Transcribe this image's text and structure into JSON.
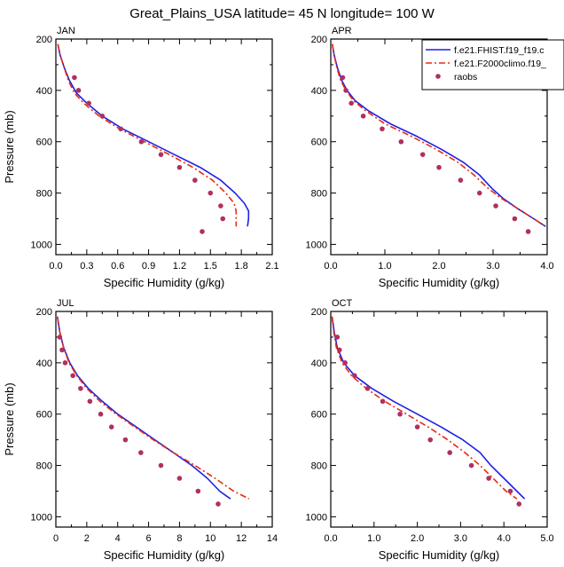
{
  "figure": {
    "title": "Great_Plains_USA  latitude= 45 N longitude= 100 W"
  },
  "legend": {
    "placement": "top-right of APR panel",
    "entries": [
      {
        "label": "f.e21.FHIST.f19_f19.c",
        "color": "#1f1fe6",
        "style": "solid"
      },
      {
        "label": "f.e21.F2000climo.f19_",
        "color": "#e62b12",
        "style": "dashed"
      },
      {
        "label": "raobs",
        "color": "#b0305f",
        "style": "marker"
      }
    ]
  },
  "colors": {
    "model1": "#1f1fe6",
    "model2": "#e62b12",
    "raobs": "#b0305f"
  },
  "chart_data": [
    {
      "type": "line",
      "title": "JAN",
      "xlabel": "Specific Humidity (g/kg)",
      "ylabel": "Pressure (mb)",
      "xlim": [
        0,
        2.1
      ],
      "ylim": [
        200,
        1040
      ],
      "y_reversed": true,
      "xticks": [
        0.0,
        0.3,
        0.6,
        0.9,
        1.2,
        1.5,
        1.8,
        2.1
      ],
      "xtick_labels": [
        "0.0",
        "0.3",
        "0.6",
        "0.9",
        "1.2",
        "1.5",
        "1.8",
        "2.1"
      ],
      "yticks": [
        200,
        400,
        600,
        800,
        1000
      ],
      "ytick_labels": [
        "200",
        "400",
        "600",
        "800",
        "1000"
      ],
      "series": [
        {
          "name": "f.e21.FHIST.f19_f19.c",
          "style": "solid",
          "x": [
            0.02,
            0.04,
            0.08,
            0.13,
            0.2,
            0.3,
            0.45,
            0.65,
            0.9,
            1.15,
            1.4,
            1.6,
            1.74,
            1.83,
            1.87,
            1.87,
            1.86
          ],
          "y": [
            220,
            260,
            310,
            360,
            410,
            450,
            500,
            550,
            600,
            650,
            700,
            750,
            800,
            840,
            870,
            900,
            930
          ]
        },
        {
          "name": "f.e21.F2000climo.f19_",
          "style": "dashed",
          "x": [
            0.02,
            0.04,
            0.08,
            0.12,
            0.18,
            0.27,
            0.42,
            0.62,
            0.86,
            1.1,
            1.33,
            1.52,
            1.65,
            1.73,
            1.75,
            1.75,
            1.75
          ],
          "y": [
            220,
            260,
            310,
            360,
            410,
            450,
            500,
            550,
            600,
            650,
            700,
            750,
            800,
            840,
            870,
            900,
            930
          ]
        },
        {
          "name": "raobs",
          "style": "markers",
          "x": [
            0.18,
            0.22,
            0.32,
            0.45,
            0.63,
            0.83,
            1.02,
            1.2,
            1.35,
            1.5,
            1.6,
            1.62,
            1.42
          ],
          "y": [
            350,
            400,
            450,
            500,
            550,
            600,
            650,
            700,
            750,
            800,
            850,
            900,
            950
          ]
        }
      ]
    },
    {
      "type": "line",
      "title": "APR",
      "xlabel": "Specific Humidity (g/kg)",
      "ylabel": "",
      "xlim": [
        0,
        4.0
      ],
      "ylim": [
        200,
        1040
      ],
      "y_reversed": true,
      "xticks": [
        0.0,
        1.0,
        2.0,
        3.0,
        4.0
      ],
      "xtick_labels": [
        "0.0",
        "1.0",
        "2.0",
        "3.0",
        "4.0"
      ],
      "yticks": [
        200,
        400,
        600,
        800,
        1000
      ],
      "ytick_labels": [
        "200",
        "400",
        "600",
        "800",
        "1000"
      ],
      "series": [
        {
          "name": "f.e21.FHIST.f19_f19.c",
          "style": "solid",
          "x": [
            0.03,
            0.06,
            0.12,
            0.2,
            0.3,
            0.45,
            0.7,
            1.1,
            1.6,
            2.05,
            2.45,
            2.75,
            2.97,
            3.18,
            3.45,
            3.75,
            3.97
          ],
          "y": [
            220,
            260,
            310,
            360,
            400,
            440,
            480,
            530,
            580,
            630,
            680,
            730,
            780,
            820,
            860,
            900,
            930
          ]
        },
        {
          "name": "f.e21.F2000climo.f19_",
          "style": "dashed",
          "x": [
            0.03,
            0.06,
            0.11,
            0.18,
            0.28,
            0.42,
            0.65,
            1.0,
            1.5,
            1.95,
            2.35,
            2.65,
            2.9,
            3.15,
            3.45,
            3.75,
            3.97
          ],
          "y": [
            220,
            260,
            310,
            360,
            400,
            440,
            480,
            530,
            580,
            630,
            680,
            730,
            780,
            820,
            860,
            900,
            930
          ]
        },
        {
          "name": "raobs",
          "style": "markers",
          "x": [
            0.22,
            0.28,
            0.38,
            0.6,
            0.95,
            1.3,
            1.7,
            2.0,
            2.4,
            2.75,
            3.05,
            3.4,
            3.65
          ],
          "y": [
            350,
            400,
            450,
            500,
            550,
            600,
            650,
            700,
            750,
            800,
            850,
            900,
            950
          ]
        }
      ]
    },
    {
      "type": "line",
      "title": "JUL",
      "xlabel": "Specific Humidity (g/kg)",
      "ylabel": "Pressure (mb)",
      "xlim": [
        0,
        14
      ],
      "ylim": [
        200,
        1040
      ],
      "y_reversed": true,
      "xticks": [
        0,
        2,
        4,
        6,
        8,
        10,
        12,
        14
      ],
      "xtick_labels": [
        "0",
        "2",
        "4",
        "6",
        "8",
        "10",
        "12",
        "14"
      ],
      "yticks": [
        200,
        400,
        600,
        800,
        1000
      ],
      "ytick_labels": [
        "200",
        "400",
        "600",
        "800",
        "1000"
      ],
      "series": [
        {
          "name": "f.e21.FHIST.f19_f19.c",
          "style": "solid",
          "x": [
            0.1,
            0.25,
            0.5,
            0.9,
            1.4,
            2.1,
            3.0,
            4.0,
            5.2,
            6.4,
            7.6,
            8.8,
            9.8,
            10.6,
            11.3
          ],
          "y": [
            220,
            280,
            340,
            400,
            450,
            500,
            550,
            600,
            650,
            700,
            750,
            800,
            850,
            900,
            930
          ]
        },
        {
          "name": "f.e21.F2000climo.f19_",
          "style": "dashed",
          "x": [
            0.1,
            0.25,
            0.5,
            0.85,
            1.35,
            2.0,
            2.85,
            3.9,
            5.1,
            6.3,
            7.6,
            9.0,
            10.3,
            11.5,
            12.5
          ],
          "y": [
            220,
            280,
            340,
            400,
            450,
            500,
            550,
            600,
            650,
            700,
            750,
            800,
            850,
            900,
            930
          ]
        },
        {
          "name": "raobs",
          "style": "markers",
          "x": [
            0.25,
            0.4,
            0.6,
            1.1,
            1.6,
            2.2,
            2.9,
            3.6,
            4.5,
            5.5,
            6.8,
            8.0,
            9.2,
            10.5
          ],
          "y": [
            300,
            350,
            400,
            450,
            500,
            550,
            600,
            650,
            700,
            750,
            800,
            850,
            900,
            950
          ]
        }
      ]
    },
    {
      "type": "line",
      "title": "OCT",
      "xlabel": "Specific Humidity (g/kg)",
      "ylabel": "",
      "xlim": [
        0,
        5.0
      ],
      "ylim": [
        200,
        1040
      ],
      "y_reversed": true,
      "xticks": [
        0.0,
        1.0,
        2.0,
        3.0,
        4.0,
        5.0
      ],
      "xtick_labels": [
        "0.0",
        "1.0",
        "2.0",
        "3.0",
        "4.0",
        "5.0"
      ],
      "yticks": [
        200,
        400,
        600,
        800,
        1000
      ],
      "ytick_labels": [
        "200",
        "400",
        "600",
        "800",
        "1000"
      ],
      "series": [
        {
          "name": "f.e21.FHIST.f19_f19.c",
          "style": "solid",
          "x": [
            0.03,
            0.08,
            0.15,
            0.3,
            0.55,
            0.95,
            1.45,
            2.0,
            2.55,
            3.05,
            3.45,
            3.7,
            4.0,
            4.3,
            4.48
          ],
          "y": [
            220,
            280,
            340,
            400,
            450,
            500,
            550,
            600,
            650,
            700,
            750,
            800,
            850,
            900,
            930
          ]
        },
        {
          "name": "f.e21.F2000climo.f19_",
          "style": "dashed",
          "x": [
            0.03,
            0.07,
            0.13,
            0.26,
            0.48,
            0.82,
            1.25,
            1.75,
            2.25,
            2.7,
            3.1,
            3.45,
            3.75,
            4.05,
            4.3
          ],
          "y": [
            220,
            280,
            340,
            400,
            450,
            500,
            550,
            600,
            650,
            700,
            750,
            800,
            850,
            900,
            930
          ]
        },
        {
          "name": "raobs",
          "style": "markers",
          "x": [
            0.15,
            0.2,
            0.33,
            0.55,
            0.85,
            1.2,
            1.6,
            2.0,
            2.3,
            2.75,
            3.25,
            3.65,
            4.15,
            4.35
          ],
          "y": [
            300,
            350,
            400,
            450,
            500,
            550,
            600,
            650,
            700,
            750,
            800,
            850,
            900,
            950
          ]
        }
      ]
    }
  ]
}
